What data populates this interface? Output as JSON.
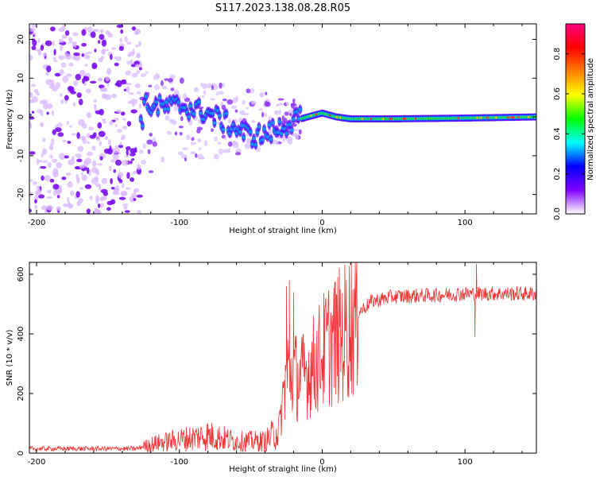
{
  "figure_title": "S117.2023.138.08.28.R05",
  "chart_data": [
    {
      "type": "heatmap",
      "title": "",
      "xlabel": "Height of straight line (km)",
      "ylabel": "Frequency (Hz)",
      "xlim": [
        -205,
        150
      ],
      "ylim": [
        -25,
        24
      ],
      "x_ticks": [
        -200,
        -100,
        0,
        100
      ],
      "y_ticks": [
        -20,
        -10,
        0,
        10,
        20
      ],
      "colorbar": {
        "label": "Normalized spectral amplitude",
        "range": [
          0.0,
          0.95
        ],
        "ticks": [
          0.0,
          0.2,
          0.4,
          0.6,
          0.8
        ],
        "colormap": [
          "#ffffff",
          "#7f00ff",
          "#0000ff",
          "#00ffff",
          "#00ff00",
          "#ffff00",
          "#ff7f00",
          "#ff0000",
          "#ff0080"
        ]
      },
      "trace": [
        {
          "x": -125,
          "f": 3
        },
        {
          "x": -110,
          "f": 2.5
        },
        {
          "x": -100,
          "f": 3
        },
        {
          "x": -90,
          "f": 2
        },
        {
          "x": -80,
          "f": 1
        },
        {
          "x": -70,
          "f": -1
        },
        {
          "x": -60,
          "f": -3
        },
        {
          "x": -50,
          "f": -5
        },
        {
          "x": -40,
          "f": -4.5
        },
        {
          "x": -30,
          "f": -3
        },
        {
          "x": -20,
          "f": -1
        },
        {
          "x": -10,
          "f": 0
        },
        {
          "x": 0,
          "f": 1
        },
        {
          "x": 10,
          "f": 0
        },
        {
          "x": 20,
          "f": -0.5
        },
        {
          "x": 50,
          "f": -0.5
        },
        {
          "x": 100,
          "f": -0.3
        },
        {
          "x": 150,
          "f": 0
        }
      ],
      "scatter_region": {
        "x": [
          -205,
          -127
        ],
        "f": [
          -25,
          24
        ]
      },
      "noise_region": {
        "x": [
          -127,
          -15
        ],
        "f": [
          -15,
          12
        ]
      }
    },
    {
      "type": "line",
      "title": "",
      "xlabel": "Height of straight line (km)",
      "ylabel": "SNR (10 * v/v)",
      "xlim": [
        -205,
        150
      ],
      "ylim": [
        0,
        640
      ],
      "x_ticks": [
        -200,
        -100,
        0,
        100
      ],
      "y_ticks": [
        0,
        200,
        400,
        600
      ],
      "color": "#ee3333",
      "envelope": [
        {
          "x": -205,
          "y": 15
        },
        {
          "x": -130,
          "y": 15
        },
        {
          "x": -120,
          "y": 30
        },
        {
          "x": -100,
          "y": 45
        },
        {
          "x": -80,
          "y": 60
        },
        {
          "x": -60,
          "y": 40
        },
        {
          "x": -40,
          "y": 40
        },
        {
          "x": -30,
          "y": 80
        },
        {
          "x": -25,
          "y": 280
        },
        {
          "x": -15,
          "y": 250
        },
        {
          "x": -5,
          "y": 300
        },
        {
          "x": 5,
          "y": 370
        },
        {
          "x": 15,
          "y": 400
        },
        {
          "x": 25,
          "y": 470
        },
        {
          "x": 35,
          "y": 510
        },
        {
          "x": 50,
          "y": 525
        },
        {
          "x": 80,
          "y": 530
        },
        {
          "x": 100,
          "y": 535
        },
        {
          "x": 150,
          "y": 535
        }
      ],
      "spikes": [
        {
          "x": -23,
          "y": 580
        },
        {
          "x": -25,
          "y": 560
        },
        {
          "x": -20,
          "y": 540
        },
        {
          "x": 108,
          "y": 635
        },
        {
          "x": 107,
          "y": 390
        }
      ]
    }
  ]
}
